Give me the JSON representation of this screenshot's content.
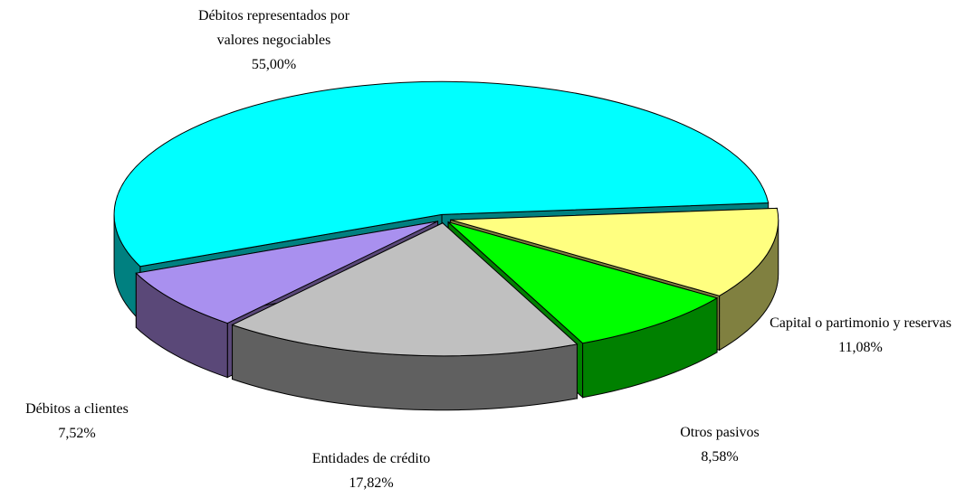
{
  "chart_data": {
    "type": "pie",
    "categories": [
      "Capital o partimonio y reservas",
      "Otros pasivos",
      "Entidades de crédito",
      "Débitos a clientes",
      "Débitos representados por valores negociables"
    ],
    "values": [
      11.08,
      8.58,
      17.82,
      7.52,
      55.0
    ],
    "value_labels": [
      "11,08%",
      "8,58%",
      "17,82%",
      "7,52%",
      "55,00%"
    ],
    "colors": [
      "#ffff80",
      "#00ff00",
      "#c0c0c0",
      "#a990ef",
      "#00ffff"
    ],
    "side_colors": [
      "#808040",
      "#008000",
      "#606060",
      "#5a4878",
      "#008080"
    ]
  }
}
